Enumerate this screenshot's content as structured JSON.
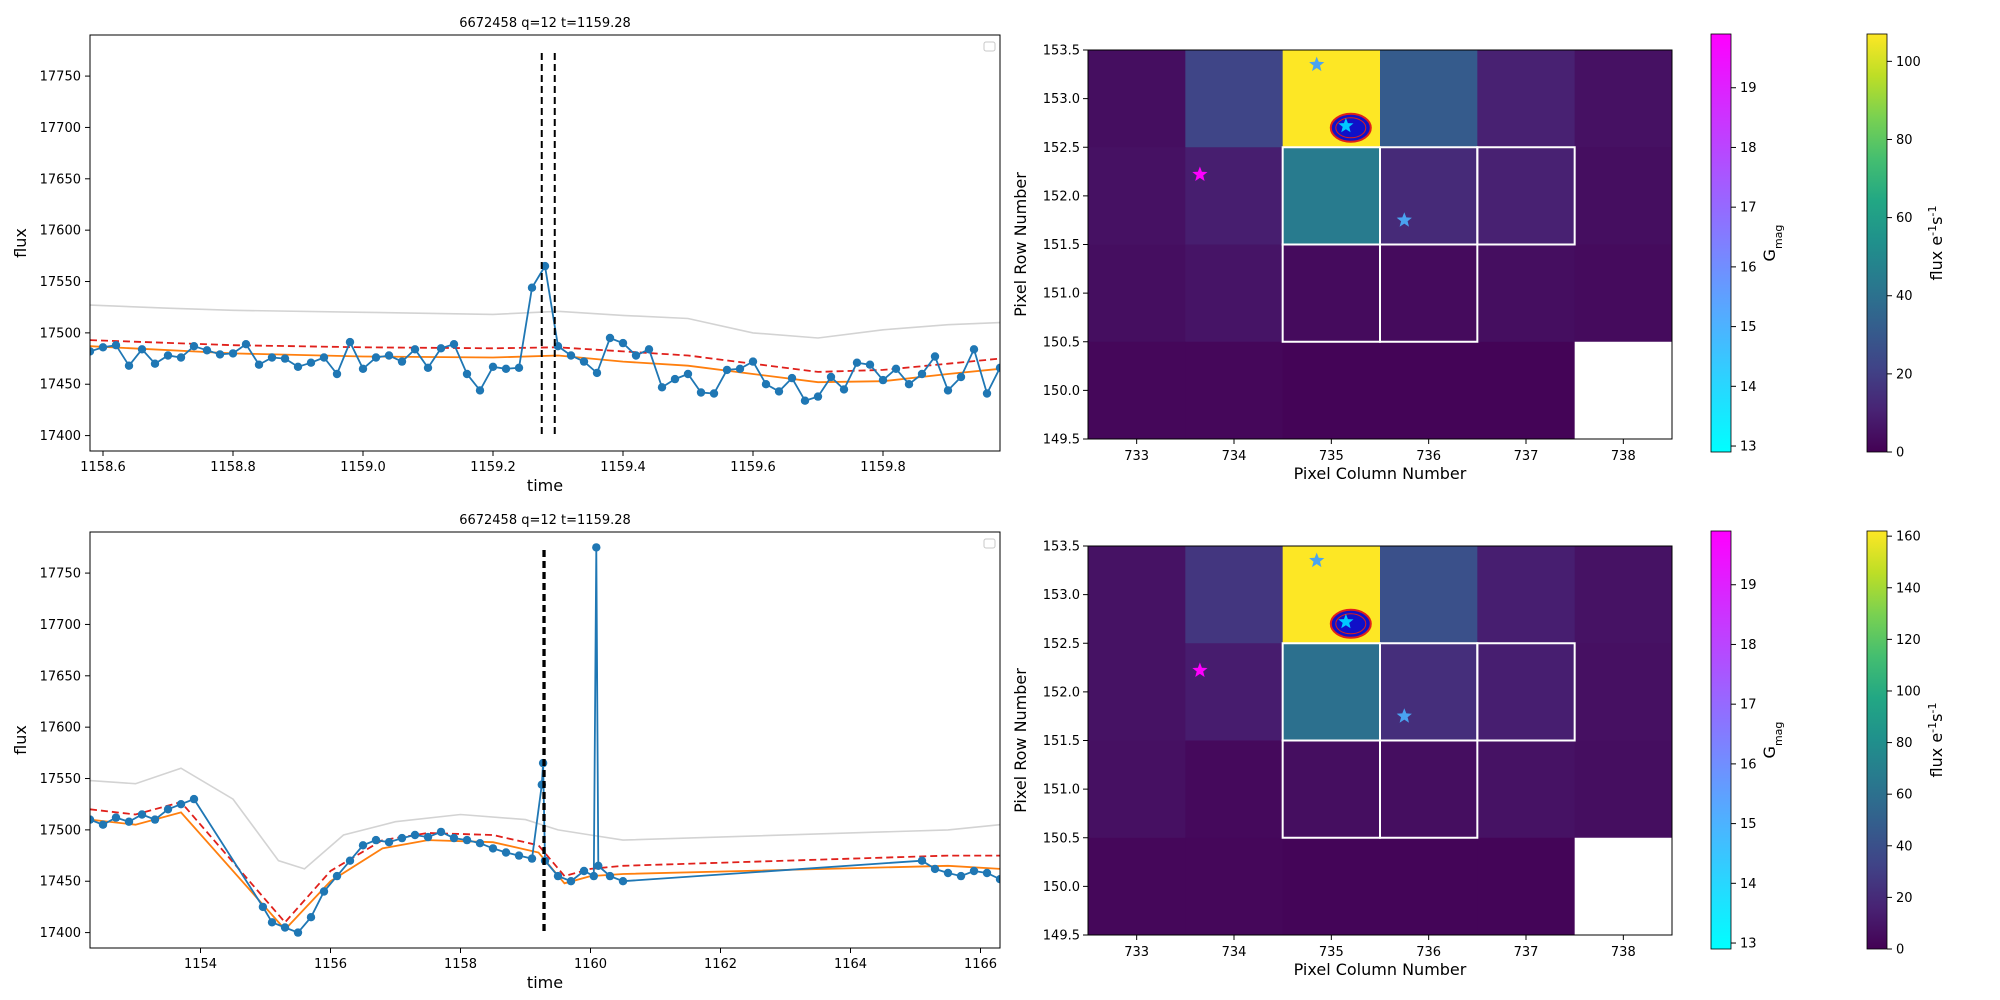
{
  "chart_data": [
    {
      "type": "line",
      "title": "6672458 q=12 t=1159.28",
      "xlabel": "time",
      "ylabel": "flux",
      "xlim": [
        1158.58,
        1159.98
      ],
      "ylim": [
        17385,
        17790
      ],
      "xticks": [
        1158.6,
        1158.8,
        1159.0,
        1159.2,
        1159.4,
        1159.6,
        1159.8
      ],
      "xtick_labels": [
        "1158.6",
        "1158.8",
        "1159.0",
        "1159.2",
        "1159.4",
        "1159.6",
        "1159.8"
      ],
      "yticks": [
        17400,
        17450,
        17500,
        17550,
        17600,
        17650,
        17700,
        17750
      ],
      "ytick_labels": [
        "17400",
        "17450",
        "17500",
        "17550",
        "17600",
        "17650",
        "17700",
        "17750"
      ],
      "legend": "top-right (empty)",
      "series": [
        {
          "role": "flux",
          "color": "#1f77b4",
          "marker": "circle",
          "x": [
            1158.58,
            1158.6,
            1158.62,
            1158.64,
            1158.66,
            1158.68,
            1158.7,
            1158.72,
            1158.74,
            1158.76,
            1158.78,
            1158.8,
            1158.82,
            1158.84,
            1158.86,
            1158.88,
            1158.9,
            1158.92,
            1158.94,
            1158.96,
            1158.98,
            1159.0,
            1159.02,
            1159.04,
            1159.06,
            1159.08,
            1159.1,
            1159.12,
            1159.14,
            1159.16,
            1159.18,
            1159.2,
            1159.22,
            1159.24,
            1159.26,
            1159.28,
            1159.3,
            1159.32,
            1159.34,
            1159.36,
            1159.38,
            1159.4,
            1159.42,
            1159.44,
            1159.46,
            1159.48,
            1159.5,
            1159.52,
            1159.54,
            1159.56,
            1159.58,
            1159.6,
            1159.62,
            1159.64,
            1159.66,
            1159.68,
            1159.7,
            1159.72,
            1159.74,
            1159.76,
            1159.78,
            1159.8,
            1159.82,
            1159.84,
            1159.86,
            1159.88,
            1159.9,
            1159.92,
            1159.94,
            1159.96,
            1159.98
          ],
          "y": [
            17482,
            17486,
            17488,
            17468,
            17484,
            17470,
            17478,
            17476,
            17487,
            17483,
            17479,
            17480,
            17489,
            17469,
            17476,
            17475,
            17467,
            17471,
            17476,
            17460,
            17491,
            17465,
            17476,
            17478,
            17472,
            17484,
            17466,
            17485,
            17489,
            17460,
            17444,
            17467,
            17465,
            17466,
            17544,
            17565,
            17487,
            17478,
            17472,
            17461,
            17495,
            17490,
            17478,
            17484,
            17447,
            17455,
            17460,
            17442,
            17441,
            17464,
            17465,
            17472,
            17450,
            17443,
            17456,
            17434,
            17438,
            17457,
            17445,
            17471,
            17469,
            17454,
            17465,
            17450,
            17460,
            17477,
            17444,
            17457,
            17484,
            17441,
            17466
          ]
        },
        {
          "role": "upper threshold",
          "color": "#e0201b",
          "dash": "dashed",
          "x": [
            1158.58,
            1158.8,
            1159.0,
            1159.2,
            1159.3,
            1159.4,
            1159.5,
            1159.6,
            1159.7,
            1159.8,
            1159.9,
            1159.98
          ],
          "y": [
            17493,
            17488,
            17486,
            17485,
            17486,
            17482,
            17478,
            17470,
            17462,
            17464,
            17470,
            17475
          ]
        },
        {
          "role": "trend",
          "color": "#ff7f0e",
          "x": [
            1158.58,
            1158.8,
            1159.0,
            1159.2,
            1159.3,
            1159.4,
            1159.5,
            1159.6,
            1159.7,
            1159.8,
            1159.9,
            1159.98
          ],
          "y": [
            17487,
            17480,
            17477,
            17476,
            17478,
            17472,
            17468,
            17460,
            17452,
            17453,
            17460,
            17465
          ]
        },
        {
          "role": "upper envelope",
          "color": "#d3d3d3",
          "x": [
            1158.58,
            1158.7,
            1158.8,
            1159.0,
            1159.2,
            1159.3,
            1159.4,
            1159.5,
            1159.6,
            1159.7,
            1159.8,
            1159.9,
            1159.98
          ],
          "y": [
            17527,
            17524,
            17522,
            17520,
            17518,
            17521,
            17517,
            17514,
            17500,
            17495,
            17503,
            17508,
            17510
          ]
        }
      ],
      "vlines": [
        1159.275,
        1159.295
      ]
    },
    {
      "type": "heatmap",
      "xlabel": "Pixel Column Number",
      "ylabel": "Pixel Row Number",
      "cols": [
        733,
        734,
        735,
        736,
        737,
        738
      ],
      "rows": [
        153,
        152,
        151,
        150
      ],
      "xticks": [
        733,
        734,
        735,
        736,
        737,
        738
      ],
      "xtick_labels": [
        "733",
        "734",
        "735",
        "736",
        "737",
        "738"
      ],
      "yticks": [
        149.5,
        150.0,
        150.5,
        151.0,
        151.5,
        152.0,
        152.5,
        153.0,
        153.5
      ],
      "ytick_labels": [
        "149.5",
        "150.0",
        "150.5",
        "151.0",
        "151.5",
        "152.0",
        "152.5",
        "153.0",
        "153.5"
      ],
      "values": [
        [
          4,
          22,
          108,
          31,
          10,
          5
        ],
        [
          5,
          9,
          44,
          13,
          10,
          4
        ],
        [
          4,
          6,
          3,
          3,
          4,
          3
        ],
        [
          2,
          2,
          1,
          1,
          1,
          null
        ]
      ],
      "aperture_cells": [
        [
          152,
          735
        ],
        [
          152,
          736
        ],
        [
          152,
          737
        ],
        [
          151,
          735
        ],
        [
          151,
          736
        ]
      ],
      "stars": [
        {
          "col": 734.85,
          "row": 153.35,
          "color": "#4aa3f0"
        },
        {
          "col": 735.15,
          "row": 152.72,
          "color": "#00c8ff"
        },
        {
          "col": 733.65,
          "row": 152.22,
          "color": "#ff00ff"
        },
        {
          "col": 735.75,
          "row": 151.75,
          "color": "#4aa3f0"
        }
      ],
      "target": {
        "col": 735.2,
        "row": 152.7
      },
      "colorbar_gmag": {
        "label": "G_mag",
        "ticks": [
          "13",
          "14",
          "15",
          "16",
          "17",
          "18",
          "19"
        ],
        "range": [
          12.9,
          19.9
        ]
      },
      "colorbar_flux": {
        "label": "flux e^-1 s^-1",
        "ticks": [
          "0",
          "20",
          "40",
          "60",
          "80",
          "100"
        ],
        "vmax": 107
      }
    },
    {
      "type": "line",
      "title": "6672458 q=12 t=1159.28",
      "xlabel": "time",
      "ylabel": "flux",
      "xlim": [
        1152.3,
        1166.3
      ],
      "ylim": [
        17385,
        17790
      ],
      "xticks": [
        1154,
        1156,
        1158,
        1160,
        1162,
        1164,
        1166
      ],
      "xtick_labels": [
        "1154",
        "1156",
        "1158",
        "1160",
        "1162",
        "1164",
        "1166"
      ],
      "yticks": [
        17400,
        17450,
        17500,
        17550,
        17600,
        17650,
        17700,
        17750
      ],
      "ytick_labels": [
        "17400",
        "17450",
        "17500",
        "17550",
        "17600",
        "17650",
        "17700",
        "17750"
      ],
      "legend": "top-right (empty)",
      "series": [
        {
          "role": "flux",
          "color": "#1f77b4",
          "marker": "circle",
          "x": [
            1152.3,
            1152.5,
            1152.7,
            1152.9,
            1153.1,
            1153.3,
            1153.5,
            1153.7,
            1153.9,
            1154.96,
            1155.1,
            1155.3,
            1155.5,
            1155.7,
            1155.9,
            1156.1,
            1156.3,
            1156.5,
            1156.7,
            1156.9,
            1157.1,
            1157.3,
            1157.5,
            1157.7,
            1157.9,
            1158.1,
            1158.3,
            1158.5,
            1158.7,
            1158.9,
            1159.1,
            1159.25,
            1159.27,
            1159.3,
            1159.5,
            1159.7,
            1159.9,
            1160.05,
            1160.09,
            1160.12,
            1160.3,
            1160.5,
            1165.1,
            1165.3,
            1165.5,
            1165.7,
            1165.9,
            1166.1,
            1166.3
          ],
          "y": [
            17510,
            17505,
            17512,
            17508,
            17515,
            17510,
            17520,
            17525,
            17530,
            17425,
            17410,
            17405,
            17400,
            17415,
            17440,
            17455,
            17470,
            17485,
            17490,
            17488,
            17492,
            17495,
            17493,
            17498,
            17492,
            17490,
            17487,
            17482,
            17478,
            17475,
            17472,
            17544,
            17565,
            17470,
            17455,
            17450,
            17460,
            17455,
            17775,
            17465,
            17455,
            17450,
            17470,
            17462,
            17458,
            17455,
            17460,
            17458,
            17452
          ]
        },
        {
          "role": "upper threshold",
          "color": "#e0201b",
          "dash": "dashed",
          "x": [
            1152.3,
            1153.0,
            1153.7,
            1155.3,
            1156.0,
            1156.8,
            1157.5,
            1158.5,
            1159.2,
            1159.6,
            1160.0,
            1160.5,
            1165.5,
            1166.3
          ],
          "y": [
            17520,
            17515,
            17527,
            17410,
            17460,
            17490,
            17497,
            17495,
            17485,
            17455,
            17462,
            17465,
            17475,
            17475
          ]
        },
        {
          "role": "trend",
          "color": "#ff7f0e",
          "x": [
            1152.3,
            1153.0,
            1153.7,
            1155.3,
            1156.0,
            1156.8,
            1157.5,
            1158.5,
            1159.2,
            1159.6,
            1160.0,
            1160.5,
            1165.5,
            1166.3
          ],
          "y": [
            17510,
            17505,
            17517,
            17403,
            17450,
            17482,
            17490,
            17488,
            17478,
            17448,
            17455,
            17457,
            17465,
            17462
          ]
        },
        {
          "role": "upper envelope",
          "color": "#d3d3d3",
          "x": [
            1152.3,
            1153.0,
            1153.7,
            1154.5,
            1155.2,
            1155.6,
            1156.2,
            1157.0,
            1158.0,
            1159.0,
            1159.5,
            1160.0,
            1160.5,
            1165.5,
            1166.3
          ],
          "y": [
            17548,
            17545,
            17560,
            17530,
            17470,
            17462,
            17495,
            17508,
            17515,
            17510,
            17500,
            17495,
            17490,
            17500,
            17505
          ]
        }
      ],
      "vlines": [
        1159.275,
        1159.295
      ]
    },
    {
      "type": "heatmap",
      "xlabel": "Pixel Column Number",
      "ylabel": "Pixel Row Number",
      "cols": [
        733,
        734,
        735,
        736,
        737,
        738
      ],
      "rows": [
        153,
        152,
        151,
        150
      ],
      "xticks": [
        733,
        734,
        735,
        736,
        737,
        738
      ],
      "xtick_labels": [
        "733",
        "734",
        "735",
        "736",
        "737",
        "738"
      ],
      "yticks": [
        149.5,
        150.0,
        150.5,
        151.0,
        151.5,
        152.0,
        152.5,
        153.0,
        153.5
      ],
      "ytick_labels": [
        "149.5",
        "150.0",
        "150.5",
        "151.0",
        "151.5",
        "152.0",
        "152.5",
        "153.0",
        "153.5"
      ],
      "values": [
        [
          8,
          26,
          162,
          40,
          14,
          8
        ],
        [
          8,
          13,
          60,
          22,
          14,
          7
        ],
        [
          7,
          4,
          6,
          6,
          8,
          6
        ],
        [
          3,
          3,
          2,
          2,
          2,
          null
        ]
      ],
      "aperture_cells": [
        [
          152,
          735
        ],
        [
          152,
          736
        ],
        [
          152,
          737
        ],
        [
          151,
          735
        ],
        [
          151,
          736
        ]
      ],
      "stars": [
        {
          "col": 734.85,
          "row": 153.35,
          "color": "#4aa3f0"
        },
        {
          "col": 735.15,
          "row": 152.72,
          "color": "#00c8ff"
        },
        {
          "col": 733.65,
          "row": 152.22,
          "color": "#ff00ff"
        },
        {
          "col": 735.75,
          "row": 151.75,
          "color": "#4aa3f0"
        }
      ],
      "target": {
        "col": 735.2,
        "row": 152.7
      },
      "colorbar_gmag": {
        "label": "G_mag",
        "ticks": [
          "13",
          "14",
          "15",
          "16",
          "17",
          "18",
          "19"
        ],
        "range": [
          12.9,
          19.9
        ]
      },
      "colorbar_flux": {
        "label": "flux e^-1 s^-1",
        "ticks": [
          "0",
          "20",
          "40",
          "60",
          "80",
          "100",
          "120",
          "140",
          "160"
        ],
        "vmax": 162
      }
    }
  ]
}
